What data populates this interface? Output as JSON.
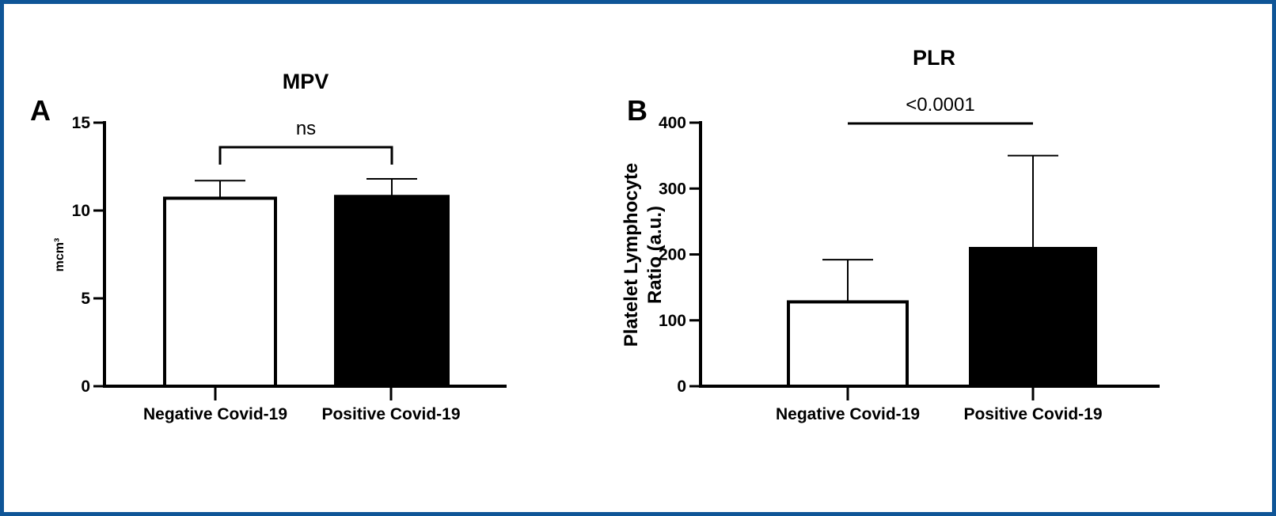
{
  "chart_data": [
    {
      "panel": "A",
      "type": "bar",
      "title": "MPV",
      "ylabel": "mcm³",
      "ylabel_lines": [
        "mcm³"
      ],
      "xlabel": "",
      "ylim": [
        0,
        15
      ],
      "yticks": [
        0,
        5,
        10,
        15
      ],
      "categories": [
        "Negative Covid-19",
        "Positive Covid-19"
      ],
      "values": [
        10.7,
        10.8
      ],
      "errors": [
        1.0,
        1.0
      ],
      "bar_colors": [
        "#ffffff",
        "#000000"
      ],
      "significance": {
        "from": 0,
        "to": 1,
        "label": "ns",
        "style": "bracket"
      }
    },
    {
      "panel": "B",
      "type": "bar",
      "title": "PLR",
      "ylabel": "Platelet Lymphocyte Ratio (a.u.)",
      "ylabel_lines": [
        "Platelet Lymphocyte",
        "Ratio (a.u.)"
      ],
      "xlabel": "",
      "ylim": [
        0,
        400
      ],
      "yticks": [
        0,
        100,
        200,
        300,
        400
      ],
      "categories": [
        "Negative Covid-19",
        "Positive Covid-19"
      ],
      "values": [
        128,
        209
      ],
      "errors": [
        64,
        141
      ],
      "bar_colors": [
        "#ffffff",
        "#000000"
      ],
      "significance": {
        "from": 0,
        "to": 1,
        "label": "<0.0001",
        "style": "line"
      }
    }
  ]
}
